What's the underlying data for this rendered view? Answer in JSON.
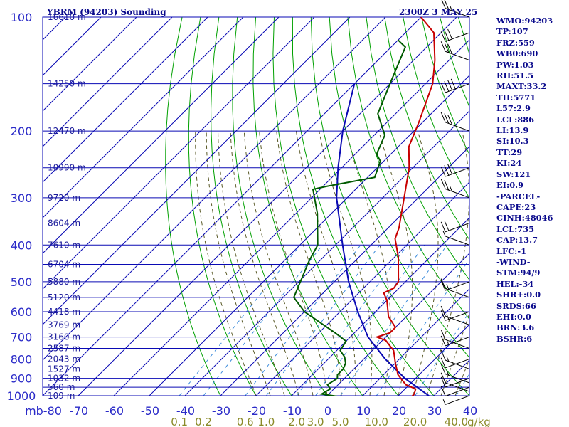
{
  "title": "YBRM (94203) Sounding",
  "datetime": "2300Z  3 MAY 25",
  "indices": [
    "WMO:94203",
    "TP:107",
    "FRZ:559",
    "WB0:690",
    "PW:1.03",
    "RH:51.5",
    "MAXT:33.2",
    "TH:5771",
    "L57:2.9",
    "LCL:886",
    "LI:13.9",
    "SI:10.3",
    "TT:29",
    "KI:24",
    "SW:121",
    "EI:0.9",
    "-PARCEL-",
    "CAPE:23",
    "CINH:48046",
    "LCL:735",
    "CAP:13.7",
    "LFC:-1",
    "-WIND-",
    "STM:94/9",
    "HEL:-34",
    "SHR+:0.0",
    "SRDS:66",
    "EHI:0.0",
    "BRN:3.6",
    "BSHR:6"
  ],
  "colors": {
    "frame": "#0a0ab4",
    "isobar": "#0a0ab4",
    "isotherm": "#0a0ab4",
    "dry_adiabat": "#00a000",
    "moist_adiabat": "#5a5a28",
    "mixing_ratio": "#3c8cdc",
    "temperature": "#c80000",
    "dewpoint": "#005a00",
    "parcel": "#0a0ab4",
    "wind": "#000000"
  },
  "chart_data": {
    "type": "skew-t",
    "pressure_unit": "mb",
    "pressure_ticks": [
      100,
      200,
      300,
      400,
      500,
      600,
      700,
      800,
      900,
      1000
    ],
    "pressure_tick_labels": [
      "100",
      "200",
      "300",
      "400",
      "500",
      "600",
      "700",
      "800",
      "900",
      "1000"
    ],
    "temperature_ticks": [
      -80,
      -70,
      -60,
      -50,
      -40,
      -30,
      -20,
      -10,
      0,
      10,
      20,
      30,
      40
    ],
    "temperature_tick_labels": [
      "mb-80",
      "-70",
      "-60",
      "-50",
      "-40",
      "-30",
      "-20",
      "-10",
      "0",
      "10",
      "20",
      "30",
      "40"
    ],
    "height_labels": [
      {
        "p": 100,
        "label": "16610 m"
      },
      {
        "p": 150,
        "label": "14250 m"
      },
      {
        "p": 200,
        "label": "12470 m"
      },
      {
        "p": 250,
        "label": "10990 m"
      },
      {
        "p": 300,
        "label": "9720 m"
      },
      {
        "p": 350,
        "label": "8604 m"
      },
      {
        "p": 400,
        "label": "7610 m"
      },
      {
        "p": 450,
        "label": "6704 m"
      },
      {
        "p": 500,
        "label": "5880 m"
      },
      {
        "p": 550,
        "label": "5120 m"
      },
      {
        "p": 600,
        "label": "4418 m"
      },
      {
        "p": 650,
        "label": "3769 m"
      },
      {
        "p": 700,
        "label": "3160 m"
      },
      {
        "p": 750,
        "label": "2587 m"
      },
      {
        "p": 800,
        "label": "2043 m"
      },
      {
        "p": 850,
        "label": "1527 m"
      },
      {
        "p": 900,
        "label": "1032 m"
      },
      {
        "p": 950,
        "label": "560 m"
      },
      {
        "p": 1000,
        "label": "109 m"
      }
    ],
    "mixing_ratio_labels": [
      {
        "w": 0.1,
        "label": "0.1"
      },
      {
        "w": 0.2,
        "label": "0.2"
      },
      {
        "w": 0.6,
        "label": "0.6"
      },
      {
        "w": 1.0,
        "label": "1.0"
      },
      {
        "w": 2.0,
        "label": "2.0"
      },
      {
        "w": 3.0,
        "label": "3.0"
      },
      {
        "w": 5.0,
        "label": "5.0"
      },
      {
        "w": 10.0,
        "label": "10.0"
      },
      {
        "w": 20.0,
        "label": "20.0"
      },
      {
        "w": 40.0,
        "label": "40.0"
      }
    ],
    "mixing_ratio_unit": "g/kg",
    "temperature": [
      {
        "p": 1004,
        "t": 24.0
      },
      {
        "p": 990,
        "t": 24.0
      },
      {
        "p": 960,
        "t": 23.0
      },
      {
        "p": 935,
        "t": 19.0
      },
      {
        "p": 880,
        "t": 14.0
      },
      {
        "p": 820,
        "t": 10.0
      },
      {
        "p": 760,
        "t": 6.0
      },
      {
        "p": 715,
        "t": 1.0
      },
      {
        "p": 700,
        "t": -2.5
      },
      {
        "p": 682,
        "t": 0.0
      },
      {
        "p": 660,
        "t": 0.0
      },
      {
        "p": 618,
        "t": -5.0
      },
      {
        "p": 560,
        "t": -10.0
      },
      {
        "p": 535,
        "t": -13.0
      },
      {
        "p": 520,
        "t": -11.5
      },
      {
        "p": 500,
        "t": -12.0
      },
      {
        "p": 430,
        "t": -19.0
      },
      {
        "p": 385,
        "t": -25.0
      },
      {
        "p": 360,
        "t": -27.0
      },
      {
        "p": 300,
        "t": -34.0
      },
      {
        "p": 250,
        "t": -41.0
      },
      {
        "p": 220,
        "t": -47.0
      },
      {
        "p": 190,
        "t": -51.0
      },
      {
        "p": 150,
        "t": -58.0
      },
      {
        "p": 130,
        "t": -64.0
      },
      {
        "p": 110,
        "t": -72.0
      },
      {
        "p": 100,
        "t": -80.0
      }
    ],
    "dewpoint": [
      {
        "p": 1004,
        "t": 3.0
      },
      {
        "p": 990,
        "t": -2.0
      },
      {
        "p": 960,
        "t": -1.0
      },
      {
        "p": 935,
        "t": -3.0
      },
      {
        "p": 900,
        "t": -2.0
      },
      {
        "p": 880,
        "t": -3.0
      },
      {
        "p": 850,
        "t": -3.0
      },
      {
        "p": 820,
        "t": -4.0
      },
      {
        "p": 790,
        "t": -6.0
      },
      {
        "p": 760,
        "t": -9.0
      },
      {
        "p": 718,
        "t": -10.0
      },
      {
        "p": 685,
        "t": -15.0
      },
      {
        "p": 600,
        "t": -30.0
      },
      {
        "p": 550,
        "t": -37.0
      },
      {
        "p": 440,
        "t": -43.0
      },
      {
        "p": 400,
        "t": -45.0
      },
      {
        "p": 330,
        "t": -54.0
      },
      {
        "p": 285,
        "t": -62.0
      },
      {
        "p": 280,
        "t": -59.0
      },
      {
        "p": 265,
        "t": -48.0
      },
      {
        "p": 240,
        "t": -51.0
      },
      {
        "p": 230,
        "t": -54.0
      },
      {
        "p": 205,
        "t": -57.0
      },
      {
        "p": 180,
        "t": -65.0
      },
      {
        "p": 150,
        "t": -70.0
      },
      {
        "p": 120,
        "t": -76.0
      },
      {
        "p": 115,
        "t": -80.0
      }
    ],
    "parcel": [
      {
        "p": 1004,
        "t": 29.0
      },
      {
        "p": 900,
        "t": 17.0
      },
      {
        "p": 800,
        "t": 6.0
      },
      {
        "p": 700,
        "t": -5.0
      },
      {
        "p": 600,
        "t": -15.0
      },
      {
        "p": 500,
        "t": -26.0
      },
      {
        "p": 400,
        "t": -38.0
      },
      {
        "p": 300,
        "t": -53.0
      },
      {
        "p": 250,
        "t": -61.0
      },
      {
        "p": 200,
        "t": -70.0
      },
      {
        "p": 150,
        "t": -80.0
      }
    ],
    "wind_barbs": [
      {
        "p": 1000,
        "speed_kt": 5
      },
      {
        "p": 975,
        "speed_kt": 10
      },
      {
        "p": 950,
        "speed_kt": 10
      },
      {
        "p": 925,
        "speed_kt": 15
      },
      {
        "p": 900,
        "speed_kt": 10
      },
      {
        "p": 850,
        "speed_kt": 15
      },
      {
        "p": 800,
        "speed_kt": 10
      },
      {
        "p": 750,
        "speed_kt": 10
      },
      {
        "p": 700,
        "speed_kt": 15
      },
      {
        "p": 650,
        "speed_kt": 10
      },
      {
        "p": 600,
        "speed_kt": 15
      },
      {
        "p": 550,
        "speed_kt": 10
      },
      {
        "p": 500,
        "speed_kt": 15
      },
      {
        "p": 400,
        "speed_kt": 5
      },
      {
        "p": 350,
        "speed_kt": 20
      },
      {
        "p": 300,
        "speed_kt": 25
      },
      {
        "p": 250,
        "speed_kt": 30
      },
      {
        "p": 200,
        "speed_kt": 30
      },
      {
        "p": 150,
        "speed_kt": 40
      },
      {
        "p": 130,
        "speed_kt": 30
      },
      {
        "p": 110,
        "speed_kt": 30
      },
      {
        "p": 100,
        "speed_kt": 25
      }
    ],
    "grid": true,
    "ylim": [
      100,
      1000
    ],
    "xlim": [
      -80,
      40
    ]
  }
}
